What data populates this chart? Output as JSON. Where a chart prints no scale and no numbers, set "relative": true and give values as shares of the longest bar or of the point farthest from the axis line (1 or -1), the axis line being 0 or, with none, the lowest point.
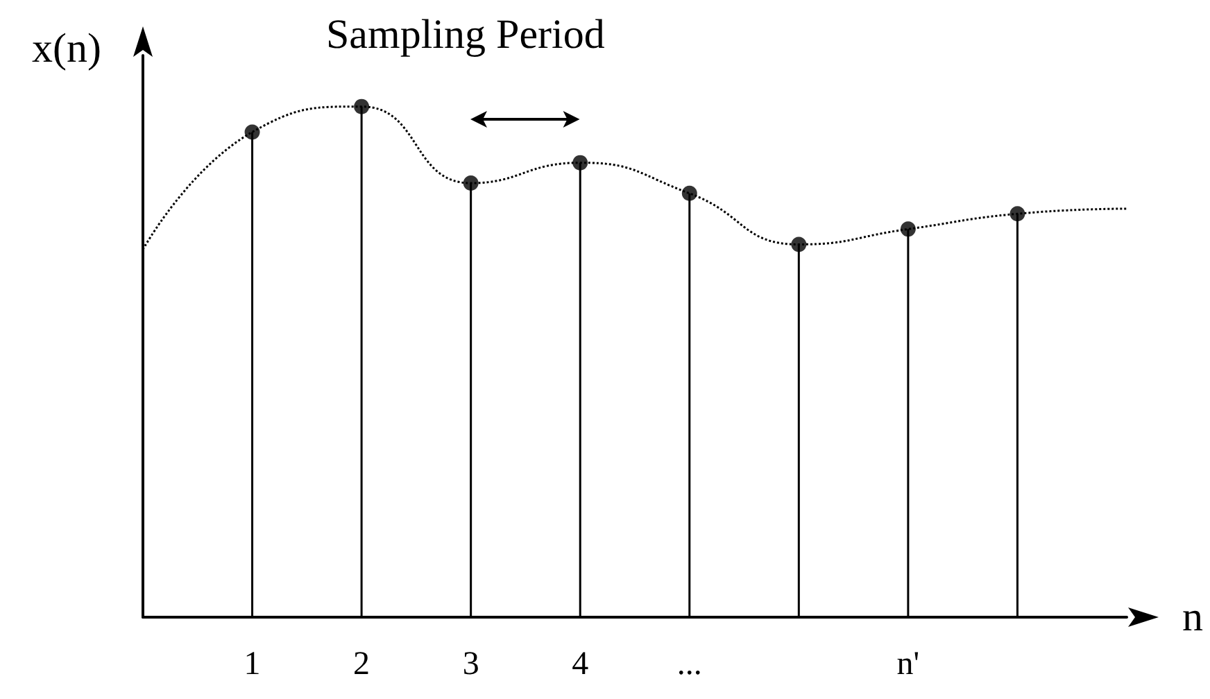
{
  "chart_data": {
    "type": "lollipop",
    "relative": true,
    "xlabel": "n",
    "ylabel": "x(n)",
    "annotations": [
      "Sampling Period"
    ],
    "categories": [
      null,
      "1",
      "2",
      "3",
      "4",
      "...",
      null,
      "n'",
      null,
      null
    ],
    "series": [
      {
        "color": "#000000",
        "marker": "circle",
        "values": [
          null,
          0.95,
          1,
          0.85,
          0.89,
          0.83,
          0.73,
          0.76,
          0.79,
          null
        ]
      },
      {
        "type": "line",
        "color": "#000000",
        "line_style": "dotted",
        "marker": "none",
        "values": [
          0.72,
          0.95,
          1,
          0.85,
          0.89,
          0.83,
          0.73,
          0.76,
          0.79,
          0.8
        ]
      }
    ],
    "tick_labels": "x",
    "grid": false
  }
}
